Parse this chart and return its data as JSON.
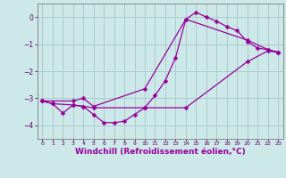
{
  "background_color": "#cce8e8",
  "grid_color": "#aacccc",
  "line_color": "#990099",
  "xlabel": "Windchill (Refroidissement éolien,°C)",
  "xlabel_fontsize": 6.5,
  "xlim": [
    -0.5,
    23.5
  ],
  "ylim": [
    -4.5,
    0.5
  ],
  "yticks": [
    0,
    -1,
    -2,
    -3,
    -4
  ],
  "xticks": [
    0,
    1,
    2,
    3,
    4,
    5,
    6,
    7,
    8,
    9,
    10,
    11,
    12,
    13,
    14,
    15,
    16,
    17,
    18,
    19,
    20,
    21,
    22,
    23
  ],
  "line1_x": [
    0,
    1,
    2,
    3,
    4,
    5,
    6,
    7,
    8,
    9,
    10,
    11,
    12,
    13,
    14,
    15,
    16,
    17,
    18,
    19,
    20,
    21,
    22,
    23
  ],
  "line1_y": [
    -3.1,
    -3.2,
    -3.55,
    -3.25,
    -3.3,
    -3.6,
    -3.9,
    -3.9,
    -3.85,
    -3.6,
    -3.35,
    -2.9,
    -2.35,
    -1.5,
    -0.08,
    0.18,
    0.0,
    -0.15,
    -0.35,
    -0.5,
    -0.9,
    -1.15,
    -1.2,
    -1.3
  ],
  "line2_x": [
    0,
    1,
    3,
    4,
    5,
    10,
    14,
    20,
    22,
    23
  ],
  "line2_y": [
    -3.1,
    -3.2,
    -3.25,
    -3.3,
    -3.35,
    -3.35,
    -3.35,
    -1.65,
    -1.25,
    -1.3
  ],
  "line3_x": [
    0,
    3,
    4,
    5,
    10,
    14,
    20,
    22,
    23
  ],
  "line3_y": [
    -3.1,
    -3.1,
    -3.0,
    -3.3,
    -2.65,
    -0.08,
    -0.85,
    -1.2,
    -1.3
  ]
}
